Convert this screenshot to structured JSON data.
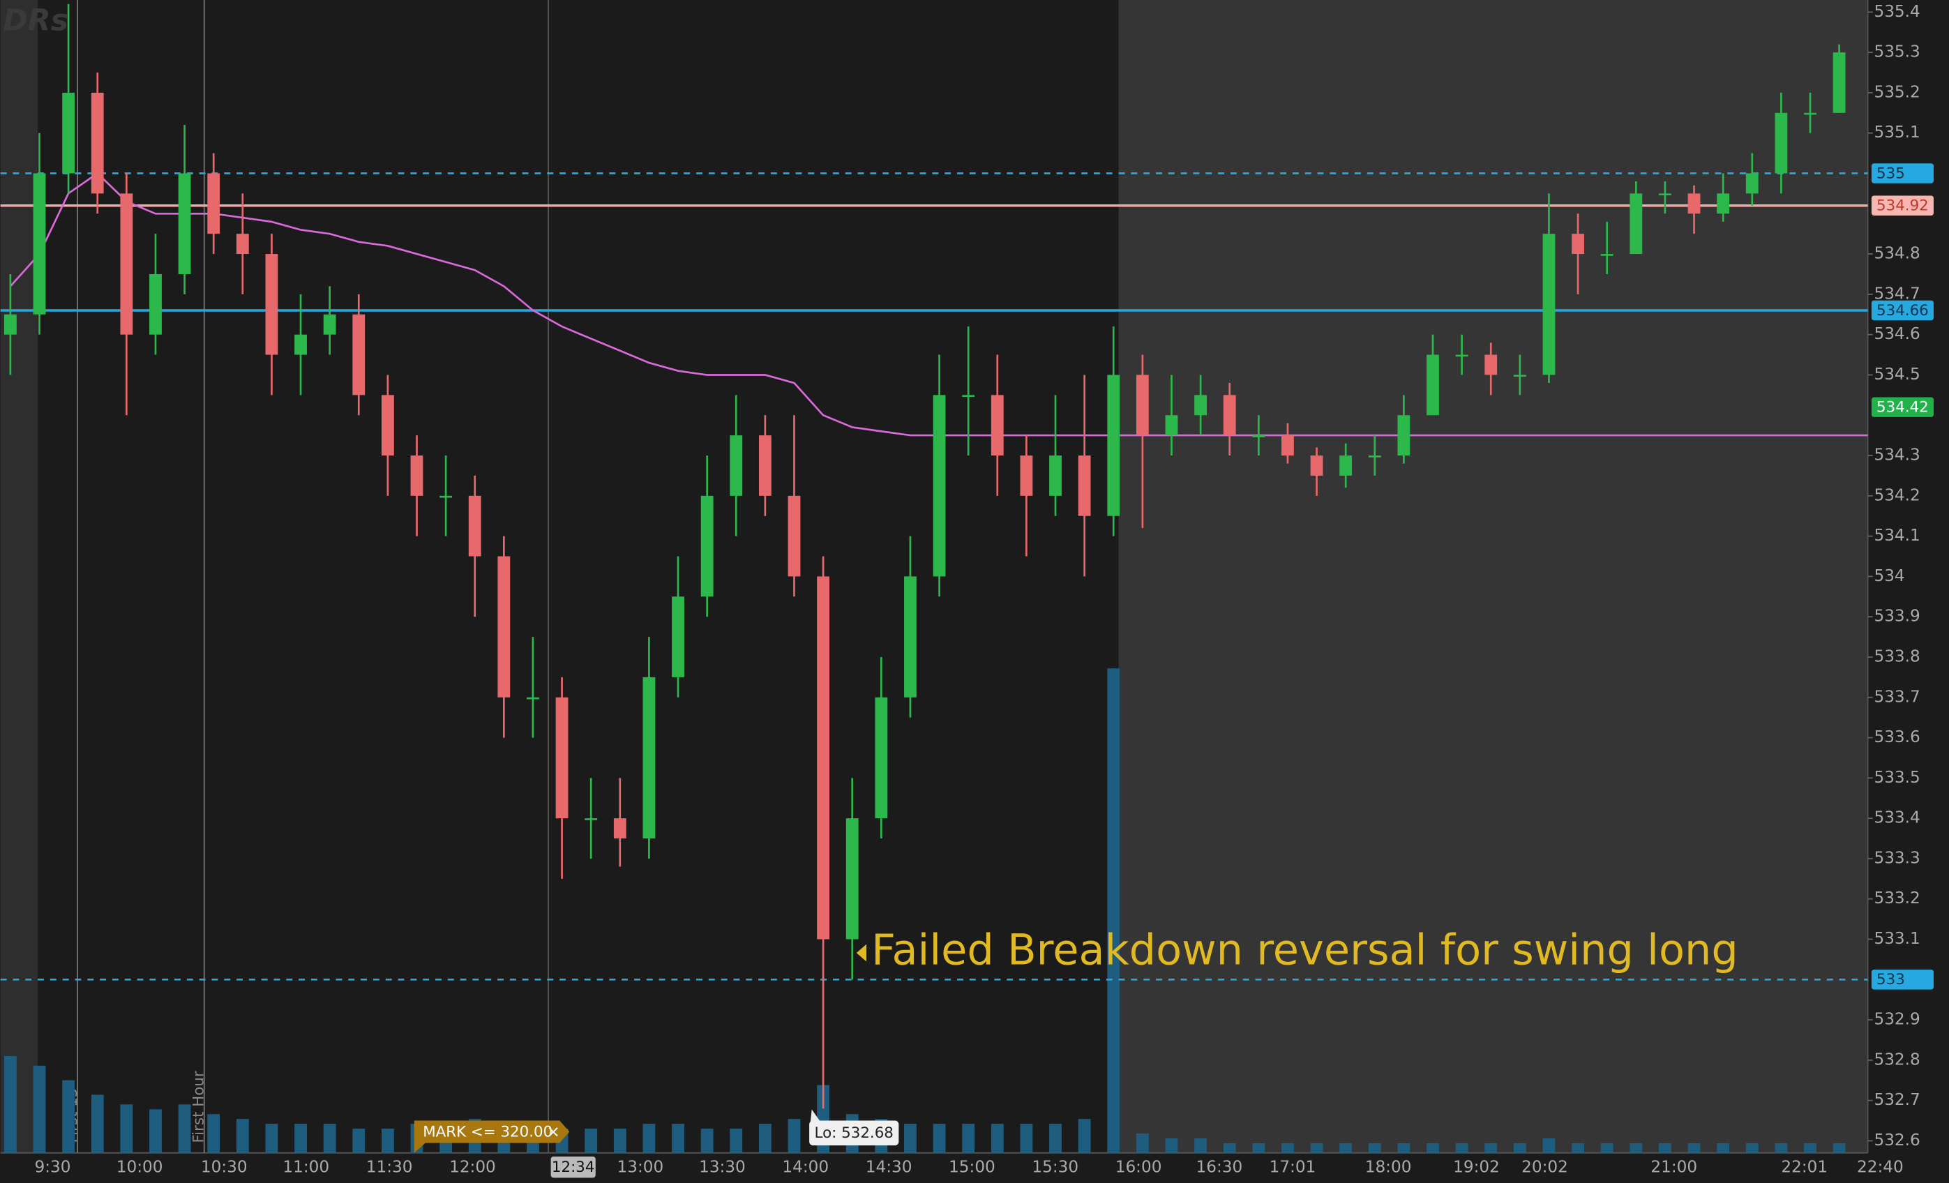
{
  "chart_data": {
    "type": "candlestick",
    "watermark": "DRs",
    "ylim": [
      532.57,
      535.43
    ],
    "yticks": [
      532.6,
      532.7,
      532.8,
      532.9,
      533.1,
      533.2,
      533.3,
      533.4,
      533.5,
      533.6,
      533.7,
      533.8,
      533.9,
      534,
      534.1,
      534.2,
      534.3,
      534.5,
      534.6,
      534.7,
      534.8,
      535.1,
      535.2,
      535.3,
      535.4
    ],
    "time_labels": [
      "9:30",
      "10:00",
      "10:30",
      "11:00",
      "11:30",
      "12:00",
      "13:00",
      "13:30",
      "14:00",
      "14:30",
      "15:00",
      "15:30",
      "16:00",
      "16:30",
      "17:01",
      "18:00",
      "19:02",
      "20:02",
      "21:00",
      "22:01",
      "22:40"
    ],
    "cursor_time": "12:34",
    "session_markers": [
      "First 15",
      "First Hour"
    ],
    "up_color": "#2cb84a",
    "down_color": "#e8696b",
    "open": [
      534.6,
      534.65,
      535.0,
      535.2,
      534.95,
      534.6,
      534.75,
      535.0,
      534.85,
      534.8,
      534.55,
      534.6,
      534.65,
      534.45,
      534.3,
      534.2,
      534.2,
      534.05,
      533.7,
      533.7,
      533.4,
      533.4,
      533.35,
      533.75,
      533.95,
      534.2,
      534.35,
      534.2,
      534.0,
      533.1,
      533.4,
      533.7,
      534.0,
      534.45,
      534.45,
      534.3,
      534.2,
      534.3,
      534.15,
      534.5,
      534.35,
      534.4,
      534.45,
      534.35,
      534.35,
      534.3,
      534.25,
      534.3,
      534.3,
      534.4,
      534.55,
      534.55,
      534.5,
      534.5,
      534.85,
      534.8,
      534.8,
      534.95,
      534.95,
      534.9,
      534.95,
      535.0,
      535.15,
      535.15
    ],
    "high": [
      534.75,
      535.1,
      535.42,
      535.25,
      535.0,
      534.85,
      535.12,
      535.05,
      534.95,
      534.85,
      534.7,
      534.72,
      534.7,
      534.5,
      534.35,
      534.3,
      534.25,
      534.1,
      533.85,
      533.75,
      533.5,
      533.5,
      533.85,
      534.05,
      534.3,
      534.45,
      534.4,
      534.4,
      534.05,
      533.5,
      533.8,
      534.1,
      534.55,
      534.62,
      534.55,
      534.35,
      534.45,
      534.5,
      534.62,
      534.55,
      534.5,
      534.5,
      534.48,
      534.4,
      534.38,
      534.32,
      534.33,
      534.35,
      534.45,
      534.6,
      534.6,
      534.58,
      534.55,
      534.95,
      534.9,
      534.88,
      534.98,
      534.98,
      534.97,
      535.0,
      535.05,
      535.2,
      535.2,
      535.32
    ],
    "low": [
      534.5,
      534.6,
      534.95,
      534.9,
      534.4,
      534.55,
      534.7,
      534.8,
      534.7,
      534.45,
      534.45,
      534.55,
      534.4,
      534.2,
      534.1,
      534.1,
      533.9,
      533.6,
      533.6,
      533.25,
      533.3,
      533.28,
      533.3,
      533.7,
      533.9,
      534.1,
      534.15,
      533.95,
      532.68,
      533.0,
      533.35,
      533.65,
      533.95,
      534.3,
      534.2,
      534.05,
      534.15,
      534.0,
      534.1,
      534.12,
      534.3,
      534.35,
      534.3,
      534.3,
      534.28,
      534.2,
      534.22,
      534.25,
      534.28,
      534.4,
      534.5,
      534.45,
      534.45,
      534.48,
      534.7,
      534.75,
      534.8,
      534.9,
      534.85,
      534.88,
      534.92,
      534.95,
      535.1,
      535.15
    ],
    "close": [
      534.65,
      535.0,
      535.2,
      534.95,
      534.6,
      534.75,
      535.0,
      534.85,
      534.8,
      534.55,
      534.6,
      534.65,
      534.45,
      534.3,
      534.2,
      534.2,
      534.05,
      533.7,
      533.7,
      533.4,
      533.4,
      533.35,
      533.75,
      533.95,
      534.2,
      534.35,
      534.2,
      534.0,
      533.1,
      533.4,
      533.7,
      534.0,
      534.45,
      534.45,
      534.3,
      534.2,
      534.3,
      534.15,
      534.5,
      534.35,
      534.4,
      534.45,
      534.35,
      534.35,
      534.3,
      534.25,
      534.3,
      534.3,
      534.4,
      534.55,
      534.55,
      534.5,
      534.5,
      534.85,
      534.8,
      534.8,
      534.95,
      534.95,
      534.9,
      534.95,
      535.0,
      535.15,
      535.15,
      535.3
    ],
    "moving_average": {
      "color": "#d96ad9",
      "values": [
        534.72,
        534.8,
        534.95,
        535.0,
        534.93,
        534.9,
        534.9,
        534.9,
        534.89,
        534.88,
        534.86,
        534.85,
        534.83,
        534.82,
        534.8,
        534.78,
        534.76,
        534.72,
        534.66,
        534.62,
        534.59,
        534.56,
        534.53,
        534.51,
        534.5,
        534.5,
        534.5,
        534.48,
        534.4,
        534.37,
        534.36,
        534.35,
        534.35,
        534.35,
        534.35,
        534.35,
        534.35,
        534.35,
        534.35,
        534.35,
        534.35,
        534.35,
        534.35,
        534.35,
        534.35,
        534.35,
        534.35,
        534.35,
        534.35,
        534.35,
        534.35,
        534.35,
        534.35,
        534.35,
        534.35,
        534.35,
        534.35,
        534.35,
        534.35,
        534.35,
        534.35,
        534.35,
        534.35,
        534.35
      ]
    },
    "volume": {
      "color": "#1f5d7e",
      "values": [
        20,
        18,
        15,
        12,
        10,
        9,
        10,
        8,
        7,
        6,
        6,
        6,
        5,
        5,
        6,
        6,
        7,
        6,
        6,
        5,
        5,
        5,
        6,
        6,
        5,
        5,
        6,
        7,
        14,
        8,
        7,
        6,
        6,
        6,
        6,
        6,
        6,
        7,
        100,
        4,
        3,
        3,
        2,
        2,
        2,
        2,
        2,
        2,
        2,
        2,
        2,
        2,
        2,
        3,
        2,
        2,
        2,
        2,
        2,
        2,
        2,
        2,
        2,
        2
      ]
    },
    "price_lines": [
      {
        "value": 535,
        "color": "#26a9e0",
        "dashed": true
      },
      {
        "value": 534.92,
        "color": "#f2aaa5",
        "dashed": false
      },
      {
        "value": 534.66,
        "color": "#26a9e0",
        "dashed": false
      },
      {
        "value": 533,
        "color": "#26a9e0",
        "dashed": true
      }
    ],
    "price_badges": [
      {
        "value": 535,
        "color": "#26a9e0",
        "text_color": "#10324a"
      },
      {
        "value": 534.92,
        "color": "#f7b6b1",
        "text_color": "#c0392b"
      },
      {
        "value": 534.66,
        "color": "#26a9e0",
        "text_color": "#10324a"
      },
      {
        "value": 534.42,
        "color": "#22b24c",
        "text_color": "#ffffff"
      },
      {
        "value": 533,
        "color": "#26a9e0",
        "text_color": "#10324a"
      }
    ],
    "annotation": "Failed Breakdown reversal for swing long",
    "low_label": "Lo: 532.68",
    "alert": "MARK <= 320.00"
  }
}
